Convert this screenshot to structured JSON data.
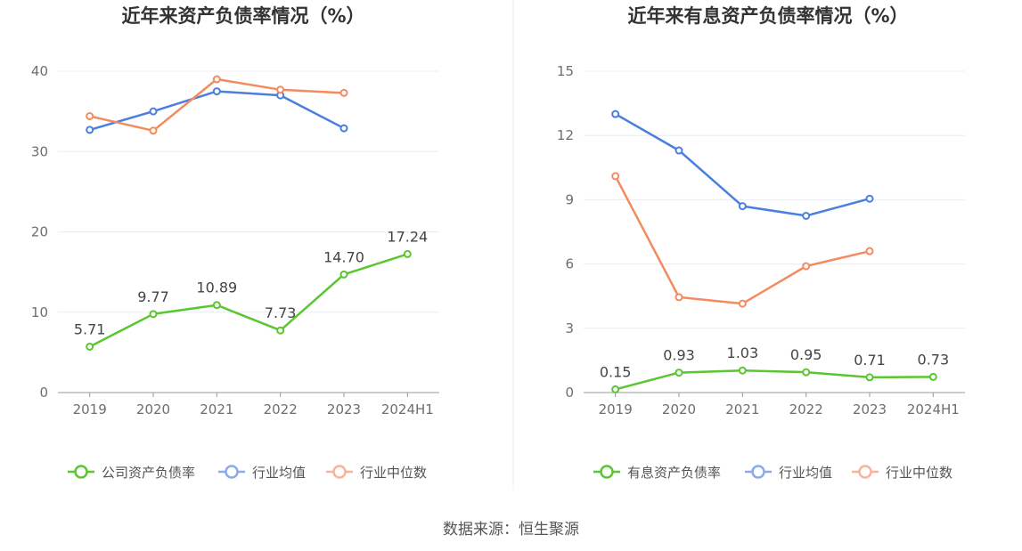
{
  "source": "数据来源：恒生聚源",
  "chart_data": [
    {
      "type": "line",
      "title": "近年来资产负债率情况（%）",
      "categories": [
        "2019",
        "2020",
        "2021",
        "2022",
        "2023",
        "2024H1"
      ],
      "ylim": [
        0,
        40
      ],
      "yticks": [
        "0",
        "10",
        "20",
        "30",
        "40"
      ],
      "grid": true,
      "legend_position": "bottom",
      "series": [
        {
          "name": "公司资产负债率",
          "color": "#5ac630",
          "values": [
            5.71,
            9.77,
            10.89,
            7.73,
            14.7,
            17.24
          ],
          "labels": [
            "5.71",
            "9.77",
            "10.89",
            "7.73",
            "14.70",
            "17.24"
          ]
        },
        {
          "name": "行业均值",
          "color": "#4a7ee0",
          "values": [
            32.7,
            35.0,
            37.5,
            37.0,
            32.9,
            null
          ]
        },
        {
          "name": "行业中位数",
          "color": "#f48b60",
          "values": [
            34.4,
            32.6,
            39.0,
            37.7,
            37.3,
            null
          ]
        }
      ]
    },
    {
      "type": "line",
      "title": "近年来有息资产负债率情况（%）",
      "categories": [
        "2019",
        "2020",
        "2021",
        "2022",
        "2023",
        "2024H1"
      ],
      "ylim": [
        0,
        15
      ],
      "yticks": [
        "0",
        "3",
        "6",
        "9",
        "12",
        "15"
      ],
      "grid": true,
      "legend_position": "bottom",
      "series": [
        {
          "name": "有息资产负债率",
          "color": "#5ac630",
          "values": [
            0.15,
            0.93,
            1.03,
            0.95,
            0.71,
            0.73
          ],
          "labels": [
            "0.15",
            "0.93",
            "1.03",
            "0.95",
            "0.71",
            "0.73"
          ]
        },
        {
          "name": "行业均值",
          "color": "#4a7ee0",
          "values": [
            13.0,
            11.3,
            8.7,
            8.25,
            9.05,
            null
          ]
        },
        {
          "name": "行业中位数",
          "color": "#f48b60",
          "values": [
            10.1,
            4.45,
            4.15,
            5.9,
            6.6,
            null
          ]
        }
      ]
    }
  ]
}
